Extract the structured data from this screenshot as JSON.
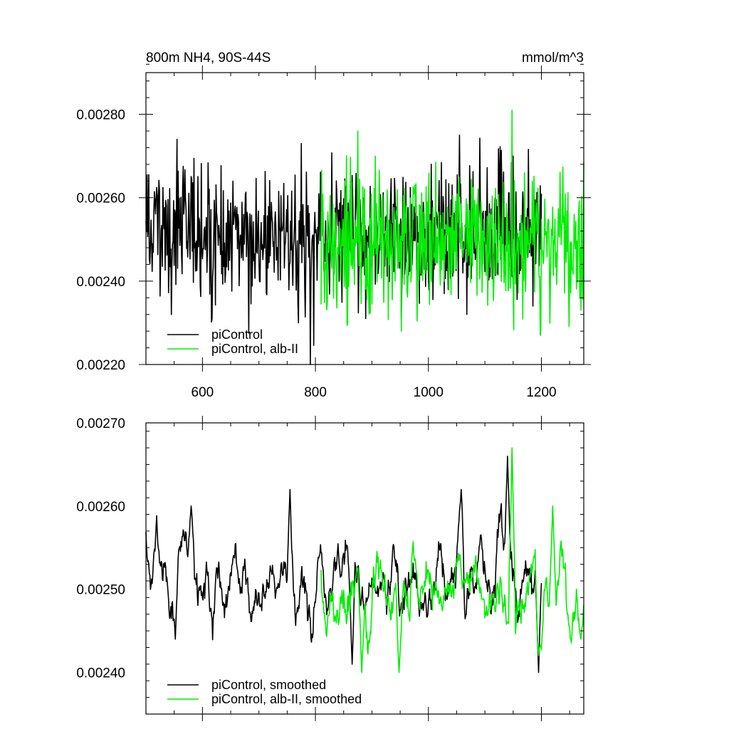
{
  "chart_data": [
    {
      "type": "line",
      "title": "800m NH4, 90S-44S",
      "units": "mmol/m^3",
      "xlim": [
        500,
        1275
      ],
      "ylim": [
        0.0022,
        0.0029
      ],
      "x_ticks": [
        600,
        800,
        1000,
        1200
      ],
      "x_tick_labels": [
        "600",
        "800",
        "1000",
        "1200"
      ],
      "y_ticks": [
        0.0022,
        0.0024,
        0.0026,
        0.0028
      ],
      "y_tick_labels": [
        "0.00220",
        "0.00240",
        "0.00260",
        "0.00280"
      ],
      "legend": "bottom-left",
      "series": [
        {
          "name": "piControl",
          "color": "#000000",
          "x_range": [
            500,
            1200
          ],
          "mean": 0.00251,
          "noise_sd": 8e-05,
          "smooth_window": 1,
          "extremes": [
            [
              555,
              0.00274
            ],
            [
              545,
              0.00232
            ],
            [
              775,
              0.00273
            ],
            [
              770,
              0.0023
            ],
            [
              1055,
              0.00275
            ],
            [
              1150,
              0.0027
            ],
            [
              1185,
              0.00234
            ]
          ]
        },
        {
          "name": "piControl, alb-II",
          "color": "#00ee00",
          "x_range": [
            810,
            1275
          ],
          "mean": 0.00249,
          "noise_sd": 8e-05,
          "smooth_window": 1,
          "extremes": [
            [
              875,
              0.00276
            ],
            [
              952,
              0.00228
            ],
            [
              1148,
              0.00281
            ],
            [
              1198,
              0.00227
            ],
            [
              1170,
              0.00266
            ],
            [
              1270,
              0.00233
            ]
          ]
        }
      ]
    },
    {
      "type": "line",
      "xlim": [
        500,
        1275
      ],
      "ylim": [
        0.00235,
        0.0027
      ],
      "x_ticks": [
        600,
        800,
        1000,
        1200
      ],
      "y_ticks": [
        0.0024,
        0.0025,
        0.0026,
        0.0027
      ],
      "y_tick_labels": [
        "0.00240",
        "0.00250",
        "0.00260",
        "0.00270"
      ],
      "legend": "bottom-left",
      "series": [
        {
          "name": "piControl, smoothed",
          "color": "#000000",
          "x_range": [
            500,
            1200
          ],
          "mean": 0.00251,
          "noise_sd": 8e-05,
          "smooth_window": 11,
          "extremes": [
            [
              580,
              0.0026
            ],
            [
              755,
              0.00262
            ],
            [
              1058,
              0.00262
            ],
            [
              1140,
              0.00266
            ],
            [
              552,
              0.00244
            ],
            [
              865,
              0.00241
            ],
            [
              1195,
              0.0024
            ]
          ]
        },
        {
          "name": "piControl, alb-II, smoothed",
          "color": "#00ee00",
          "x_range": [
            810,
            1275
          ],
          "mean": 0.00248,
          "noise_sd": 8e-05,
          "smooth_window": 11,
          "extremes": [
            [
              1148,
              0.00267
            ],
            [
              1220,
              0.0026
            ],
            [
              882,
              0.0024
            ],
            [
              948,
              0.0024
            ],
            [
              1195,
              0.00242
            ],
            [
              1270,
              0.00244
            ]
          ]
        }
      ]
    }
  ]
}
